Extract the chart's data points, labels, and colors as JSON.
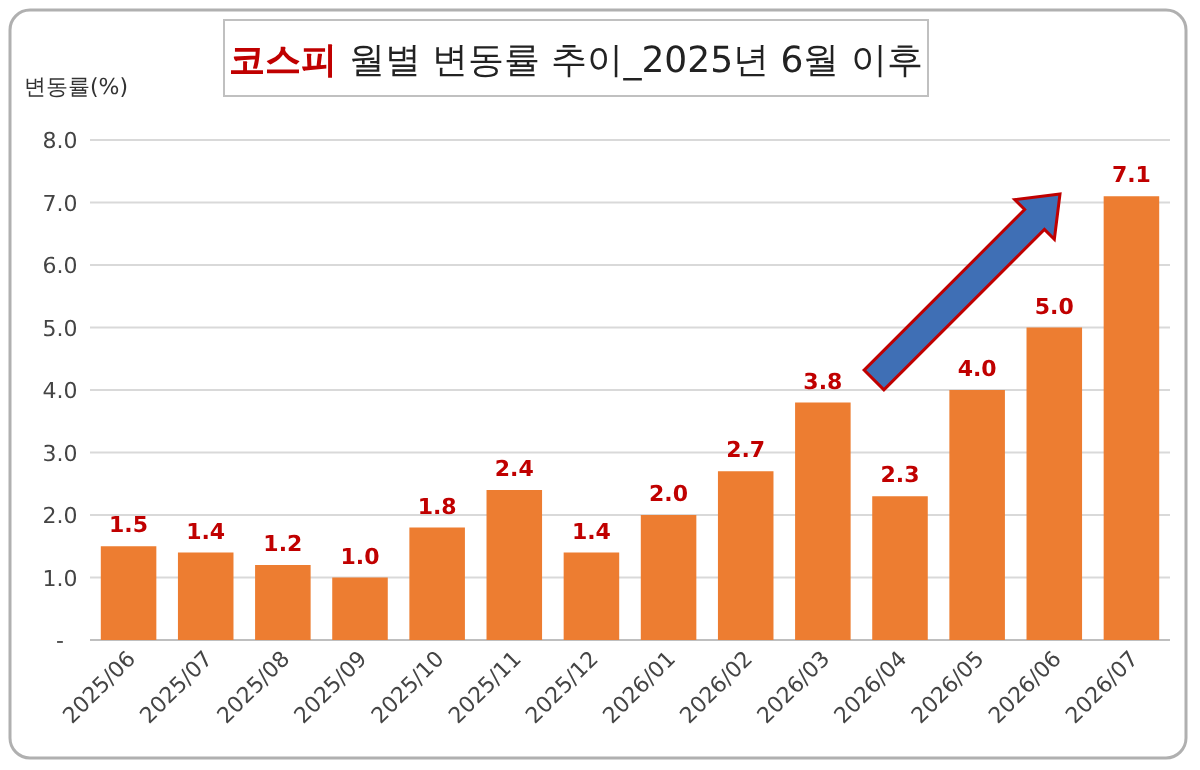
{
  "chart_data": {
    "type": "bar",
    "title": "**코스피** 월별 변동률 추이_2025년 6월 이후",
    "ylabel": "변동률(%)",
    "categories": [
      "2025/06",
      "2025/07",
      "2025/08",
      "2025/09",
      "2025/10",
      "2025/11",
      "2025/12",
      "2026/01",
      "2026/02",
      "2026/03",
      "2026/04",
      "2026/05",
      "2026/06",
      "2026/07"
    ],
    "values": [
      1.5,
      1.4,
      1.2,
      1.0,
      1.8,
      2.4,
      1.4,
      2.0,
      2.7,
      3.8,
      2.3,
      4.0,
      5.0,
      7.1
    ],
    "value_labels": [
      "1.5",
      "1.4",
      "1.2",
      "1.0",
      "1.8",
      "2.4",
      "1.4",
      "2.0",
      "2.7",
      "3.8",
      "2.3",
      "4.0",
      "5.0",
      "7.1"
    ],
    "color": "#ed7d31",
    "ylim": [
      0,
      8
    ],
    "yticks": [
      {
        "value": 0,
        "label": "-"
      },
      {
        "value": 1,
        "label": "1.0"
      },
      {
        "value": 2,
        "label": "2.0"
      },
      {
        "value": 3,
        "label": "3.0"
      },
      {
        "value": 4,
        "label": "4.0"
      },
      {
        "value": 5,
        "label": "5.0"
      },
      {
        "value": 6,
        "label": "6.0"
      },
      {
        "value": 7,
        "label": "7.0"
      },
      {
        "value": 8,
        "label": "8.0"
      }
    ],
    "grid": "y"
  }
}
